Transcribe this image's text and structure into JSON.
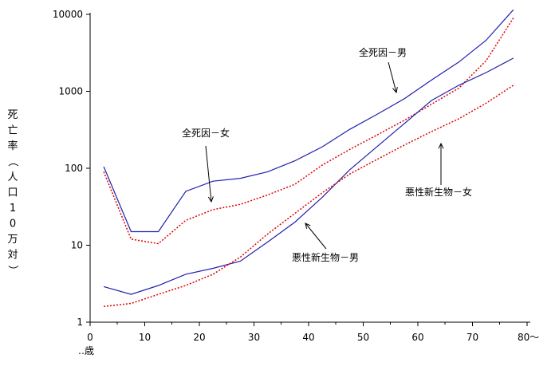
{
  "chart_data": {
    "type": "line",
    "y_scale": "log",
    "ylim": [
      1,
      10000
    ],
    "xlim": [
      0,
      80
    ],
    "grid": false,
    "legend": "none (series labelled by annotations with arrows)",
    "ylabel": "死亡率（人口10万対）",
    "xlabel_suffix": "‥歳",
    "x_tick_labels": [
      "0",
      "10",
      "20",
      "30",
      "40",
      "50",
      "60",
      "70",
      "80〜"
    ],
    "y_tick_labels": [
      "1",
      "10",
      "100",
      "1000",
      "10000"
    ],
    "colors": {
      "male": "#2020b0",
      "female": "#e00000"
    },
    "x": [
      2.5,
      7.5,
      12.5,
      17.5,
      22.5,
      27.5,
      32.5,
      37.5,
      42.5,
      47.5,
      52.5,
      57.5,
      62.5,
      67.5,
      72.5,
      77.5
    ],
    "series": [
      {
        "name": "全死因－男",
        "style": "solid",
        "color_key": "male",
        "values": [
          105,
          15,
          15,
          50,
          68,
          74,
          90,
          125,
          190,
          320,
          500,
          800,
          1400,
          2400,
          4600,
          11500
        ]
      },
      {
        "name": "全死因－女",
        "style": "dotted",
        "color_key": "female",
        "values": [
          90,
          12,
          10.5,
          21,
          29,
          34,
          45,
          62,
          110,
          175,
          270,
          420,
          680,
          1100,
          2500,
          9000
        ]
      },
      {
        "name": "悪性新生物－男",
        "style": "solid",
        "color_key": "male",
        "values": [
          2.9,
          2.3,
          3.0,
          4.2,
          5.0,
          6.2,
          11,
          20,
          42,
          95,
          190,
          380,
          760,
          1200,
          1750,
          2700
        ]
      },
      {
        "name": "悪性新生物－女",
        "style": "dotted",
        "color_key": "female",
        "values": [
          1.6,
          1.75,
          2.3,
          3.0,
          4.2,
          7.0,
          14,
          26,
          48,
          84,
          130,
          200,
          300,
          440,
          700,
          1200
        ]
      }
    ],
    "annotations": [
      {
        "text": "全死因－男"
      },
      {
        "text": "全死因－女"
      },
      {
        "text": "悪性新生物－女"
      },
      {
        "text": "悪性新生物－男"
      }
    ]
  }
}
